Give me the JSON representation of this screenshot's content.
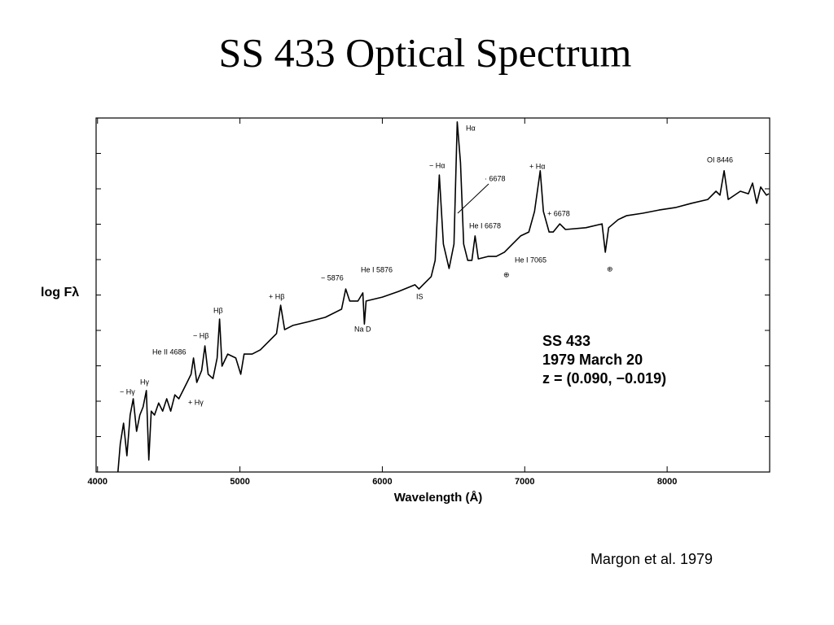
{
  "title": "SS 433 Optical Spectrum",
  "credit": "Margon et al. 1979",
  "chart_data": {
    "type": "line",
    "xlabel": "Wavelength (Å)",
    "ylabel": "log Fλ",
    "xlim": [
      3990,
      8720
    ],
    "xticks": [
      4000,
      5000,
      6000,
      7000,
      8000
    ],
    "ylim": [
      0,
      10
    ],
    "yticks": [
      0,
      1,
      2,
      3,
      4,
      5,
      6,
      7,
      8,
      9,
      10
    ],
    "color": "#000000",
    "x": [
      4143,
      4160,
      4183,
      4206,
      4229,
      4251,
      4274,
      4297,
      4320,
      4343,
      4360,
      4377,
      4400,
      4429,
      4457,
      4486,
      4514,
      4543,
      4571,
      4600,
      4629,
      4657,
      4674,
      4697,
      4731,
      4754,
      4777,
      4811,
      4840,
      4857,
      4874,
      4914,
      4971,
      5006,
      5029,
      5086,
      5143,
      5200,
      5257,
      5286,
      5314,
      5371,
      5486,
      5600,
      5714,
      5743,
      5771,
      5829,
      5863,
      5874,
      5886,
      6000,
      6114,
      6229,
      6257,
      6286,
      6343,
      6371,
      6400,
      6429,
      6469,
      6503,
      6526,
      6549,
      6571,
      6600,
      6629,
      6651,
      6674,
      6743,
      6800,
      6857,
      6914,
      6971,
      7029,
      7069,
      7109,
      7131,
      7171,
      7200,
      7246,
      7286,
      7429,
      7543,
      7566,
      7589,
      7657,
      7714,
      7829,
      7943,
      8057,
      8171,
      8286,
      8343,
      8371,
      8400,
      8429,
      8514,
      8571,
      8600,
      8629,
      8657,
      8697,
      8714
    ],
    "values": [
      0,
      0.8,
      1.38,
      0.46,
      1.61,
      2.07,
      1.15,
      1.61,
      1.84,
      2.3,
      0.34,
      1.72,
      1.61,
      1.95,
      1.72,
      2.07,
      1.72,
      2.18,
      2.07,
      2.3,
      2.53,
      2.76,
      3.22,
      2.53,
      2.87,
      3.56,
      2.76,
      2.64,
      3.22,
      4.32,
      2.99,
      3.33,
      3.22,
      2.76,
      3.33,
      3.33,
      3.45,
      3.68,
      3.91,
      4.71,
      4.02,
      4.14,
      4.25,
      4.37,
      4.6,
      5.17,
      4.83,
      4.83,
      5.06,
      4.18,
      4.83,
      4.94,
      5.1,
      5.29,
      5.17,
      5.29,
      5.52,
      5.98,
      8.39,
      6.44,
      5.75,
      6.44,
      9.89,
      8.74,
      6.44,
      5.98,
      5.98,
      6.67,
      6.02,
      6.09,
      6.09,
      6.21,
      6.44,
      6.67,
      6.78,
      7.36,
      8.51,
      7.36,
      6.78,
      6.78,
      7.01,
      6.85,
      6.9,
      7.01,
      6.21,
      6.9,
      7.13,
      7.24,
      7.31,
      7.4,
      7.47,
      7.59,
      7.7,
      7.93,
      7.82,
      8.51,
      7.7,
      7.93,
      7.86,
      8.16,
      7.59,
      8.05,
      7.82,
      7.86
    ],
    "annotations": [
      "Hα",
      "− Hα",
      "· 6678",
      "He I 6678",
      "+ Hα",
      "+ 6678",
      "He I 7065",
      "⊕",
      "⊕",
      "OI 8446",
      "He I 5876",
      "− 5876",
      "IS",
      "Na D",
      "+ Hβ",
      "Hβ",
      "− Hβ",
      "He II 4686",
      "Hγ",
      "− Hγ",
      "+ Hγ"
    ],
    "inset": [
      "SS 433",
      "1979  March 20",
      "z = (0.090, −0.019)"
    ]
  }
}
